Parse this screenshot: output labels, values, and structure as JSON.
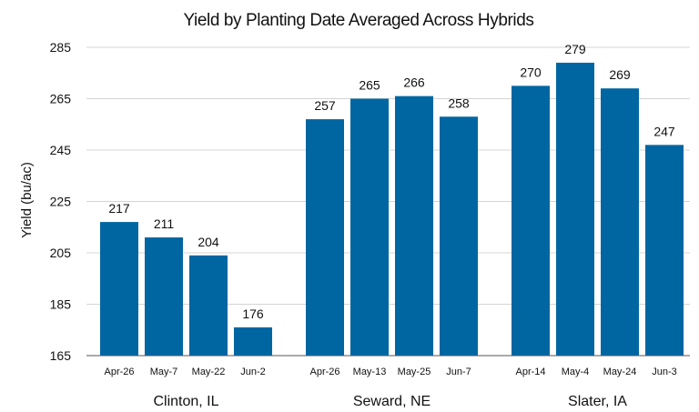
{
  "chart_data": {
    "type": "bar",
    "title": "Yield by Planting Date Averaged Across Hybrids",
    "ylabel": "Yield (bu/ac)",
    "xlabel": "",
    "ylim": [
      165,
      285
    ],
    "yticks": [
      165,
      185,
      205,
      225,
      245,
      265,
      285
    ],
    "grid": true,
    "bar_color": "#0066A1",
    "groups": [
      {
        "name": "Clinton, IL",
        "categories": [
          "Apr-26",
          "May-7",
          "May-22",
          "Jun-2"
        ],
        "values": [
          217,
          211,
          204,
          176
        ]
      },
      {
        "name": "Seward, NE",
        "categories": [
          "Apr-26",
          "May-13",
          "May-25",
          "Jun-7"
        ],
        "values": [
          257,
          265,
          266,
          258
        ]
      },
      {
        "name": "Slater, IA",
        "categories": [
          "Apr-14",
          "May-4",
          "May-24",
          "Jun-3"
        ],
        "values": [
          270,
          279,
          269,
          247
        ]
      }
    ]
  }
}
